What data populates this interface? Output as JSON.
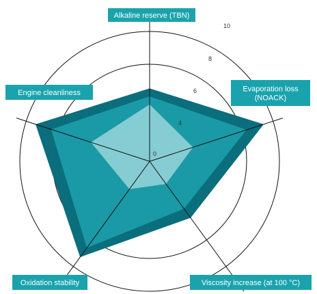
{
  "chart_data": {
    "type": "radar",
    "title": "",
    "axes": [
      "Alkaline reserve (TBN)",
      "Evaporation loss (NOACK)",
      "Viscosity increase (at 100 °C)",
      "Oxidation stability",
      "Engine cleanliness"
    ],
    "axis_label_lines": [
      [
        "Alkaline reserve (TBN)"
      ],
      [
        "Evaporation loss",
        "(NOACK)"
      ],
      [
        "Viscosity increase (at 100 °C)"
      ],
      [
        "Oxidation stability"
      ],
      [
        "Engine cleanliness"
      ]
    ],
    "rlim": [
      0,
      10
    ],
    "ticks": [
      {
        "value": 0,
        "label": "0"
      },
      {
        "value": 4,
        "label": "4"
      },
      {
        "value": 6,
        "label": "6"
      },
      {
        "value": 8,
        "label": "8"
      },
      {
        "value": 10,
        "label": "10"
      }
    ],
    "series": [
      {
        "values": [
          6.5,
          9.4,
          6.3,
          9.3,
          9.4
        ],
        "color": "#0a6e7c"
      },
      {
        "values": [
          6.0,
          8.3,
          5.6,
          8.6,
          8.4
        ],
        "color": "#1a9aa6"
      },
      {
        "values": [
          5.5,
          4.8,
          3.4,
          4.1,
          5.8
        ],
        "color": "#86ccd3"
      }
    ],
    "label_bg_color": "#1aa3ad",
    "grid_color": "#111111",
    "grid": true
  }
}
